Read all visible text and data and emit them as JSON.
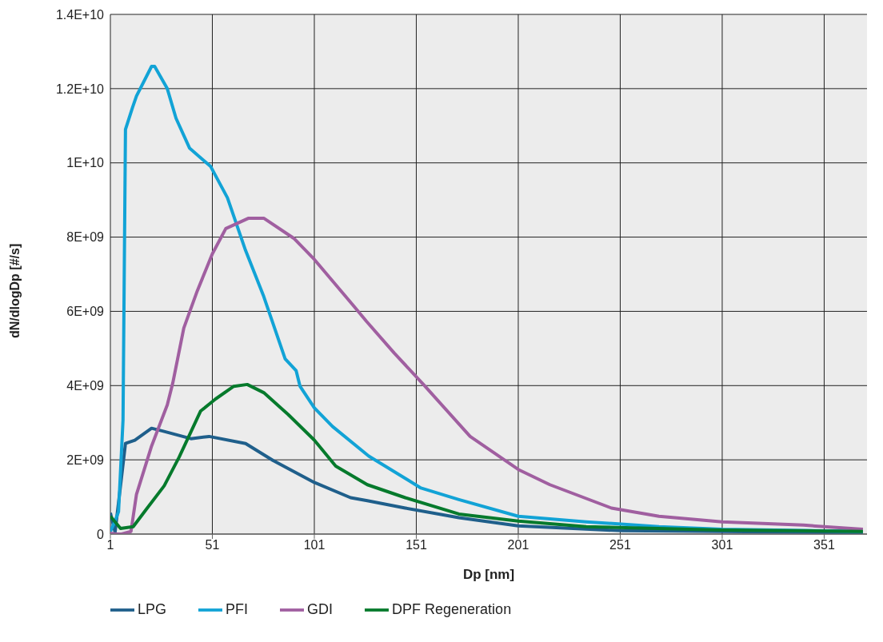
{
  "chart_data": {
    "type": "line",
    "xlabel": "Dp [nm]",
    "ylabel": "dN/dlogDp [#/s]",
    "xlim": [
      1,
      372
    ],
    "xticks": [
      1,
      51,
      101,
      151,
      201,
      251,
      301,
      351
    ],
    "ylim": [
      0,
      14000000000
    ],
    "yticks": [
      0,
      {
        "value": 2000000000,
        "label": "2E+09"
      },
      {
        "value": 4000000000,
        "label": "4E+09"
      },
      {
        "value": 6000000000,
        "label": "6E+09"
      },
      {
        "value": 8000000000,
        "label": "8E+09"
      },
      {
        "value": 10000000000,
        "label": "1E+10"
      },
      {
        "value": 12000000000,
        "label": "1.2E+10"
      },
      {
        "value": 14000000000,
        "label": "1.4E+10"
      }
    ],
    "grid": true,
    "legend": "bottom",
    "marker": "none",
    "line_style": "solid",
    "series": [
      {
        "name": "LPG",
        "color": "#1f5f8b",
        "x": [
          1,
          3.3,
          8.4,
          13,
          21.2,
          27,
          40.5,
          49.4,
          67.3,
          80.8,
          101,
          118.8,
          127,
          145.6,
          171.9,
          201,
          252.2,
          301,
          370
        ],
        "values": [
          570000000,
          50000000,
          2440000000,
          2530000000,
          2850000000,
          2770000000,
          2570000000,
          2630000000,
          2440000000,
          1980000000,
          1390000000,
          980000000,
          900000000,
          700000000,
          440000000,
          220000000,
          90000000,
          70000000,
          40000000
        ]
      },
      {
        "name": "PFI",
        "color": "#12a3d6",
        "x": [
          1,
          2.9,
          5,
          7.2,
          8.4,
          11.9,
          13.8,
          21.2,
          22.7,
          28.9,
          33.2,
          39.8,
          50.2,
          58.4,
          67.3,
          76.2,
          86.7,
          92.1,
          94,
          101,
          109.9,
          127.7,
          153.3,
          171.9,
          201,
          234.3,
          270,
          301,
          370
        ],
        "values": [
          70000000,
          300000000,
          600000000,
          3070000000,
          10900000000,
          11500000000,
          11800000000,
          12600000000,
          12600000000,
          12000000000,
          11200000000,
          10400000000,
          9900000000,
          9060000000,
          7640000000,
          6400000000,
          4720000000,
          4400000000,
          3980000000,
          3400000000,
          2900000000,
          2100000000,
          1240000000,
          930000000,
          480000000,
          330000000,
          200000000,
          130000000,
          70000000
        ]
      },
      {
        "name": "GDI",
        "color": "#a05fa0",
        "x": [
          1,
          4,
          6.5,
          11.1,
          13.8,
          21.2,
          28.9,
          31.6,
          37,
          43.6,
          51,
          57.6,
          68.8,
          76.2,
          90.9,
          101,
          120.4,
          126.6,
          140.1,
          154.5,
          177.4,
          201,
          216.5,
          246.7,
          270,
          301,
          340.9,
          370
        ],
        "values": [
          20000000,
          0,
          0,
          70000000,
          1070000000,
          2370000000,
          3480000000,
          4070000000,
          5550000000,
          6550000000,
          7550000000,
          8230000000,
          8510000000,
          8510000000,
          7970000000,
          7400000000,
          6140000000,
          5730000000,
          4880000000,
          4030000000,
          2630000000,
          1740000000,
          1330000000,
          700000000,
          480000000,
          330000000,
          240000000,
          130000000
        ]
      },
      {
        "name": "DPF Regeneration",
        "color": "#067a2c",
        "x": [
          1,
          6,
          12.2,
          18.4,
          27.4,
          34.7,
          45.2,
          52.6,
          61.5,
          68.1,
          76.2,
          88.2,
          101,
          111.5,
          127,
          145.6,
          171.9,
          201,
          234.3,
          301,
          370
        ],
        "values": [
          480000000,
          150000000,
          200000000,
          650000000,
          1300000000,
          2070000000,
          3310000000,
          3640000000,
          3980000000,
          4030000000,
          3810000000,
          3220000000,
          2530000000,
          1830000000,
          1330000000,
          980000000,
          540000000,
          350000000,
          200000000,
          110000000,
          70000000
        ]
      }
    ]
  }
}
